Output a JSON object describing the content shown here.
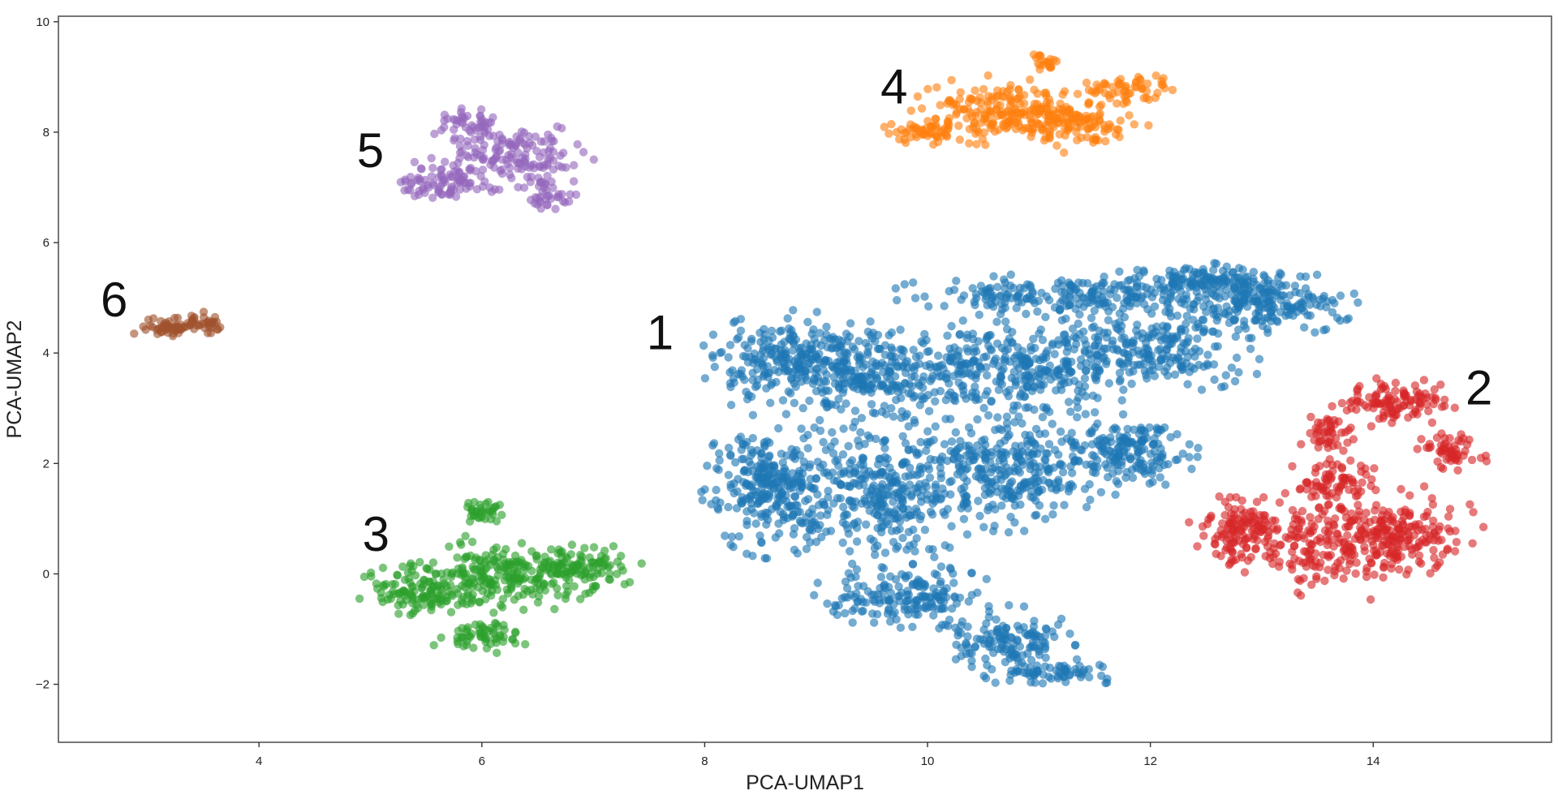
{
  "chart_data": {
    "type": "scatter",
    "title": "",
    "xlabel": "PCA-UMAP1",
    "ylabel": "PCA-UMAP2",
    "xlim": [
      2.2,
      15.6
    ],
    "ylim": [
      -3.05,
      10.1
    ],
    "xticks": [
      4,
      6,
      8,
      10,
      12,
      14
    ],
    "yticks": [
      -2,
      0,
      2,
      4,
      6,
      8,
      10
    ],
    "xtick_labels": [
      "4",
      "6",
      "8",
      "10",
      "12",
      "14"
    ],
    "ytick_labels": [
      "−2",
      "0",
      "2",
      "4",
      "6",
      "8",
      "10"
    ],
    "grid": false,
    "legend": "none",
    "series": [
      {
        "name": "1",
        "color": "#1f77b4",
        "label_at": [
          7.6,
          4.3
        ],
        "regions": [
          {
            "cx": 8.8,
            "cy": 3.8,
            "rx": 0.75,
            "ry": 0.85,
            "n": 240
          },
          {
            "cx": 9.6,
            "cy": 3.6,
            "rx": 0.9,
            "ry": 0.85,
            "n": 260
          },
          {
            "cx": 10.8,
            "cy": 3.7,
            "rx": 1.0,
            "ry": 0.85,
            "n": 260
          },
          {
            "cx": 12.0,
            "cy": 4.1,
            "rx": 1.0,
            "ry": 0.75,
            "n": 240
          },
          {
            "cx": 13.0,
            "cy": 4.9,
            "rx": 0.75,
            "ry": 0.55,
            "n": 190
          },
          {
            "cx": 11.2,
            "cy": 5.05,
            "rx": 1.4,
            "ry": 0.35,
            "n": 200
          },
          {
            "cx": 12.5,
            "cy": 5.3,
            "rx": 0.8,
            "ry": 0.35,
            "n": 140
          },
          {
            "cx": 8.6,
            "cy": 1.6,
            "rx": 0.55,
            "ry": 1.15,
            "n": 280
          },
          {
            "cx": 9.6,
            "cy": 1.5,
            "rx": 0.8,
            "ry": 1.2,
            "n": 340
          },
          {
            "cx": 10.8,
            "cy": 1.9,
            "rx": 0.9,
            "ry": 1.0,
            "n": 300
          },
          {
            "cx": 11.8,
            "cy": 2.2,
            "rx": 0.55,
            "ry": 0.6,
            "n": 160
          },
          {
            "cx": 9.8,
            "cy": -0.4,
            "rx": 0.75,
            "ry": 0.5,
            "n": 170
          },
          {
            "cx": 10.7,
            "cy": -1.2,
            "rx": 0.55,
            "ry": 0.55,
            "n": 130
          },
          {
            "cx": 11.1,
            "cy": -1.8,
            "rx": 0.55,
            "ry": 0.25,
            "n": 70
          }
        ]
      },
      {
        "name": "2",
        "color": "#d62728",
        "label_at": [
          14.95,
          3.3
        ],
        "regions": [
          {
            "cx": 12.8,
            "cy": 0.8,
            "rx": 0.5,
            "ry": 0.55,
            "n": 110
          },
          {
            "cx": 13.6,
            "cy": 0.5,
            "rx": 0.9,
            "ry": 0.9,
            "n": 230
          },
          {
            "cx": 14.3,
            "cy": 0.8,
            "rx": 0.6,
            "ry": 0.7,
            "n": 150
          },
          {
            "cx": 13.6,
            "cy": 1.7,
            "rx": 0.4,
            "ry": 0.4,
            "n": 70
          },
          {
            "cx": 14.2,
            "cy": 3.1,
            "rx": 0.5,
            "ry": 0.4,
            "n": 110
          },
          {
            "cx": 14.7,
            "cy": 2.2,
            "rx": 0.3,
            "ry": 0.35,
            "n": 55
          },
          {
            "cx": 13.65,
            "cy": 2.55,
            "rx": 0.3,
            "ry": 0.35,
            "n": 45
          }
        ]
      },
      {
        "name": "3",
        "color": "#2ca02c",
        "label_at": [
          5.05,
          0.65
        ],
        "regions": [
          {
            "cx": 5.5,
            "cy": -0.3,
            "rx": 0.55,
            "ry": 0.45,
            "n": 130
          },
          {
            "cx": 6.2,
            "cy": 0.0,
            "rx": 0.75,
            "ry": 0.65,
            "n": 200
          },
          {
            "cx": 6.9,
            "cy": 0.1,
            "rx": 0.5,
            "ry": 0.4,
            "n": 100
          },
          {
            "cx": 6.0,
            "cy": -1.1,
            "rx": 0.45,
            "ry": 0.3,
            "n": 60
          },
          {
            "cx": 6.0,
            "cy": 1.1,
            "rx": 0.18,
            "ry": 0.22,
            "n": 35
          }
        ]
      },
      {
        "name": "4",
        "color": "#ff7f0e",
        "label_at": [
          9.7,
          8.75
        ],
        "regions": [
          {
            "cx": 10.6,
            "cy": 8.4,
            "rx": 0.65,
            "ry": 0.55,
            "n": 170
          },
          {
            "cx": 11.3,
            "cy": 8.2,
            "rx": 0.6,
            "ry": 0.5,
            "n": 140
          },
          {
            "cx": 9.95,
            "cy": 8.0,
            "rx": 0.35,
            "ry": 0.22,
            "n": 50
          },
          {
            "cx": 11.8,
            "cy": 8.8,
            "rx": 0.35,
            "ry": 0.25,
            "n": 55
          },
          {
            "cx": 11.05,
            "cy": 9.25,
            "rx": 0.15,
            "ry": 0.18,
            "n": 20
          }
        ]
      },
      {
        "name": "5",
        "color": "#9467bd",
        "label_at": [
          5.0,
          7.6
        ],
        "regions": [
          {
            "cx": 6.2,
            "cy": 7.5,
            "rx": 0.7,
            "ry": 0.65,
            "n": 160
          },
          {
            "cx": 5.6,
            "cy": 7.1,
            "rx": 0.4,
            "ry": 0.35,
            "n": 70
          },
          {
            "cx": 5.9,
            "cy": 8.15,
            "rx": 0.3,
            "ry": 0.25,
            "n": 40
          },
          {
            "cx": 6.6,
            "cy": 6.9,
            "rx": 0.25,
            "ry": 0.3,
            "n": 35
          }
        ]
      },
      {
        "name": "6",
        "color": "#a0522d",
        "label_at": [
          2.7,
          4.9
        ],
        "regions": [
          {
            "cx": 3.2,
            "cy": 4.45,
            "rx": 0.32,
            "ry": 0.2,
            "n": 55
          },
          {
            "cx": 3.5,
            "cy": 4.55,
            "rx": 0.2,
            "ry": 0.17,
            "n": 30
          }
        ]
      }
    ]
  }
}
